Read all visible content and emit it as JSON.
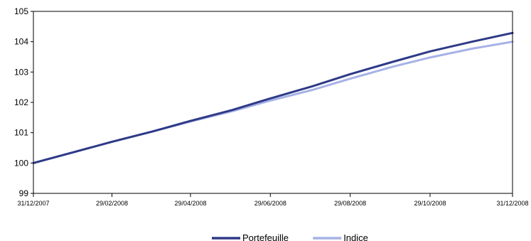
{
  "chart_data": {
    "type": "line",
    "title": "",
    "xlabel": "",
    "ylabel": "",
    "ylim": [
      99,
      105
    ],
    "y_ticks": [
      99,
      100,
      101,
      102,
      103,
      104,
      105
    ],
    "x_ticks": [
      "31/12/2007",
      "29/02/2008",
      "29/04/2008",
      "29/06/2008",
      "29/08/2008",
      "29/10/2008",
      "31/12/2008"
    ],
    "grid": false,
    "legend": "bottom-center",
    "x": [
      "31/12/2007",
      "31/01/2008",
      "29/02/2008",
      "31/03/2008",
      "29/04/2008",
      "31/05/2008",
      "29/06/2008",
      "31/07/2008",
      "29/08/2008",
      "30/09/2008",
      "29/10/2008",
      "30/11/2008",
      "31/12/2008"
    ],
    "series": [
      {
        "name": "Portefeuille",
        "color": "#2E3A87",
        "values": [
          100.0,
          100.36,
          100.7,
          101.04,
          101.39,
          101.75,
          102.13,
          102.53,
          102.93,
          103.33,
          103.68,
          104.0,
          104.29
        ]
      },
      {
        "name": "Indice",
        "color": "#A6B2E6",
        "values": [
          100.0,
          100.36,
          100.7,
          101.04,
          101.37,
          101.71,
          102.06,
          102.41,
          102.78,
          103.17,
          103.48,
          103.77,
          104.0
        ]
      }
    ]
  }
}
